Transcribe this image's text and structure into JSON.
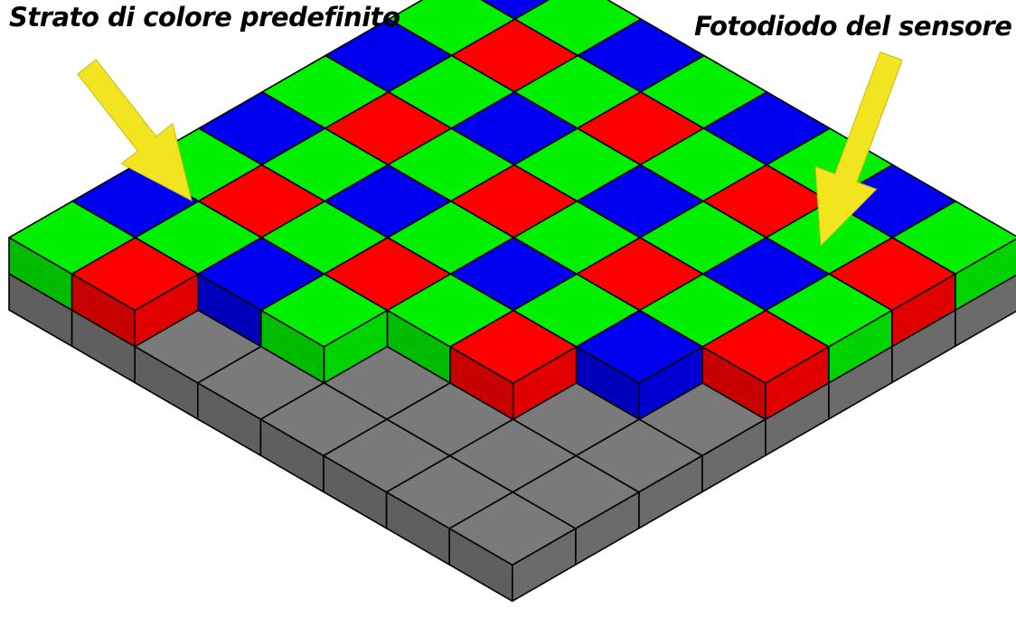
{
  "labels": {
    "filter_layer": "Strato di colore predefinito",
    "photodiode": "Fotodiodo del sensore"
  },
  "colors": {
    "red": "#ff0000",
    "green": "#00f000",
    "blue": "#0000f0",
    "photodiode": "#7a7a7a",
    "arrow": "#f2e41e",
    "outline": "#000000"
  },
  "bayer_filter": {
    "pattern_even_row": [
      "blue",
      "green"
    ],
    "pattern_odd_row": [
      "green",
      "red"
    ]
  },
  "icons": [
    "yellow-arrow",
    "yellow-arrow"
  ]
}
